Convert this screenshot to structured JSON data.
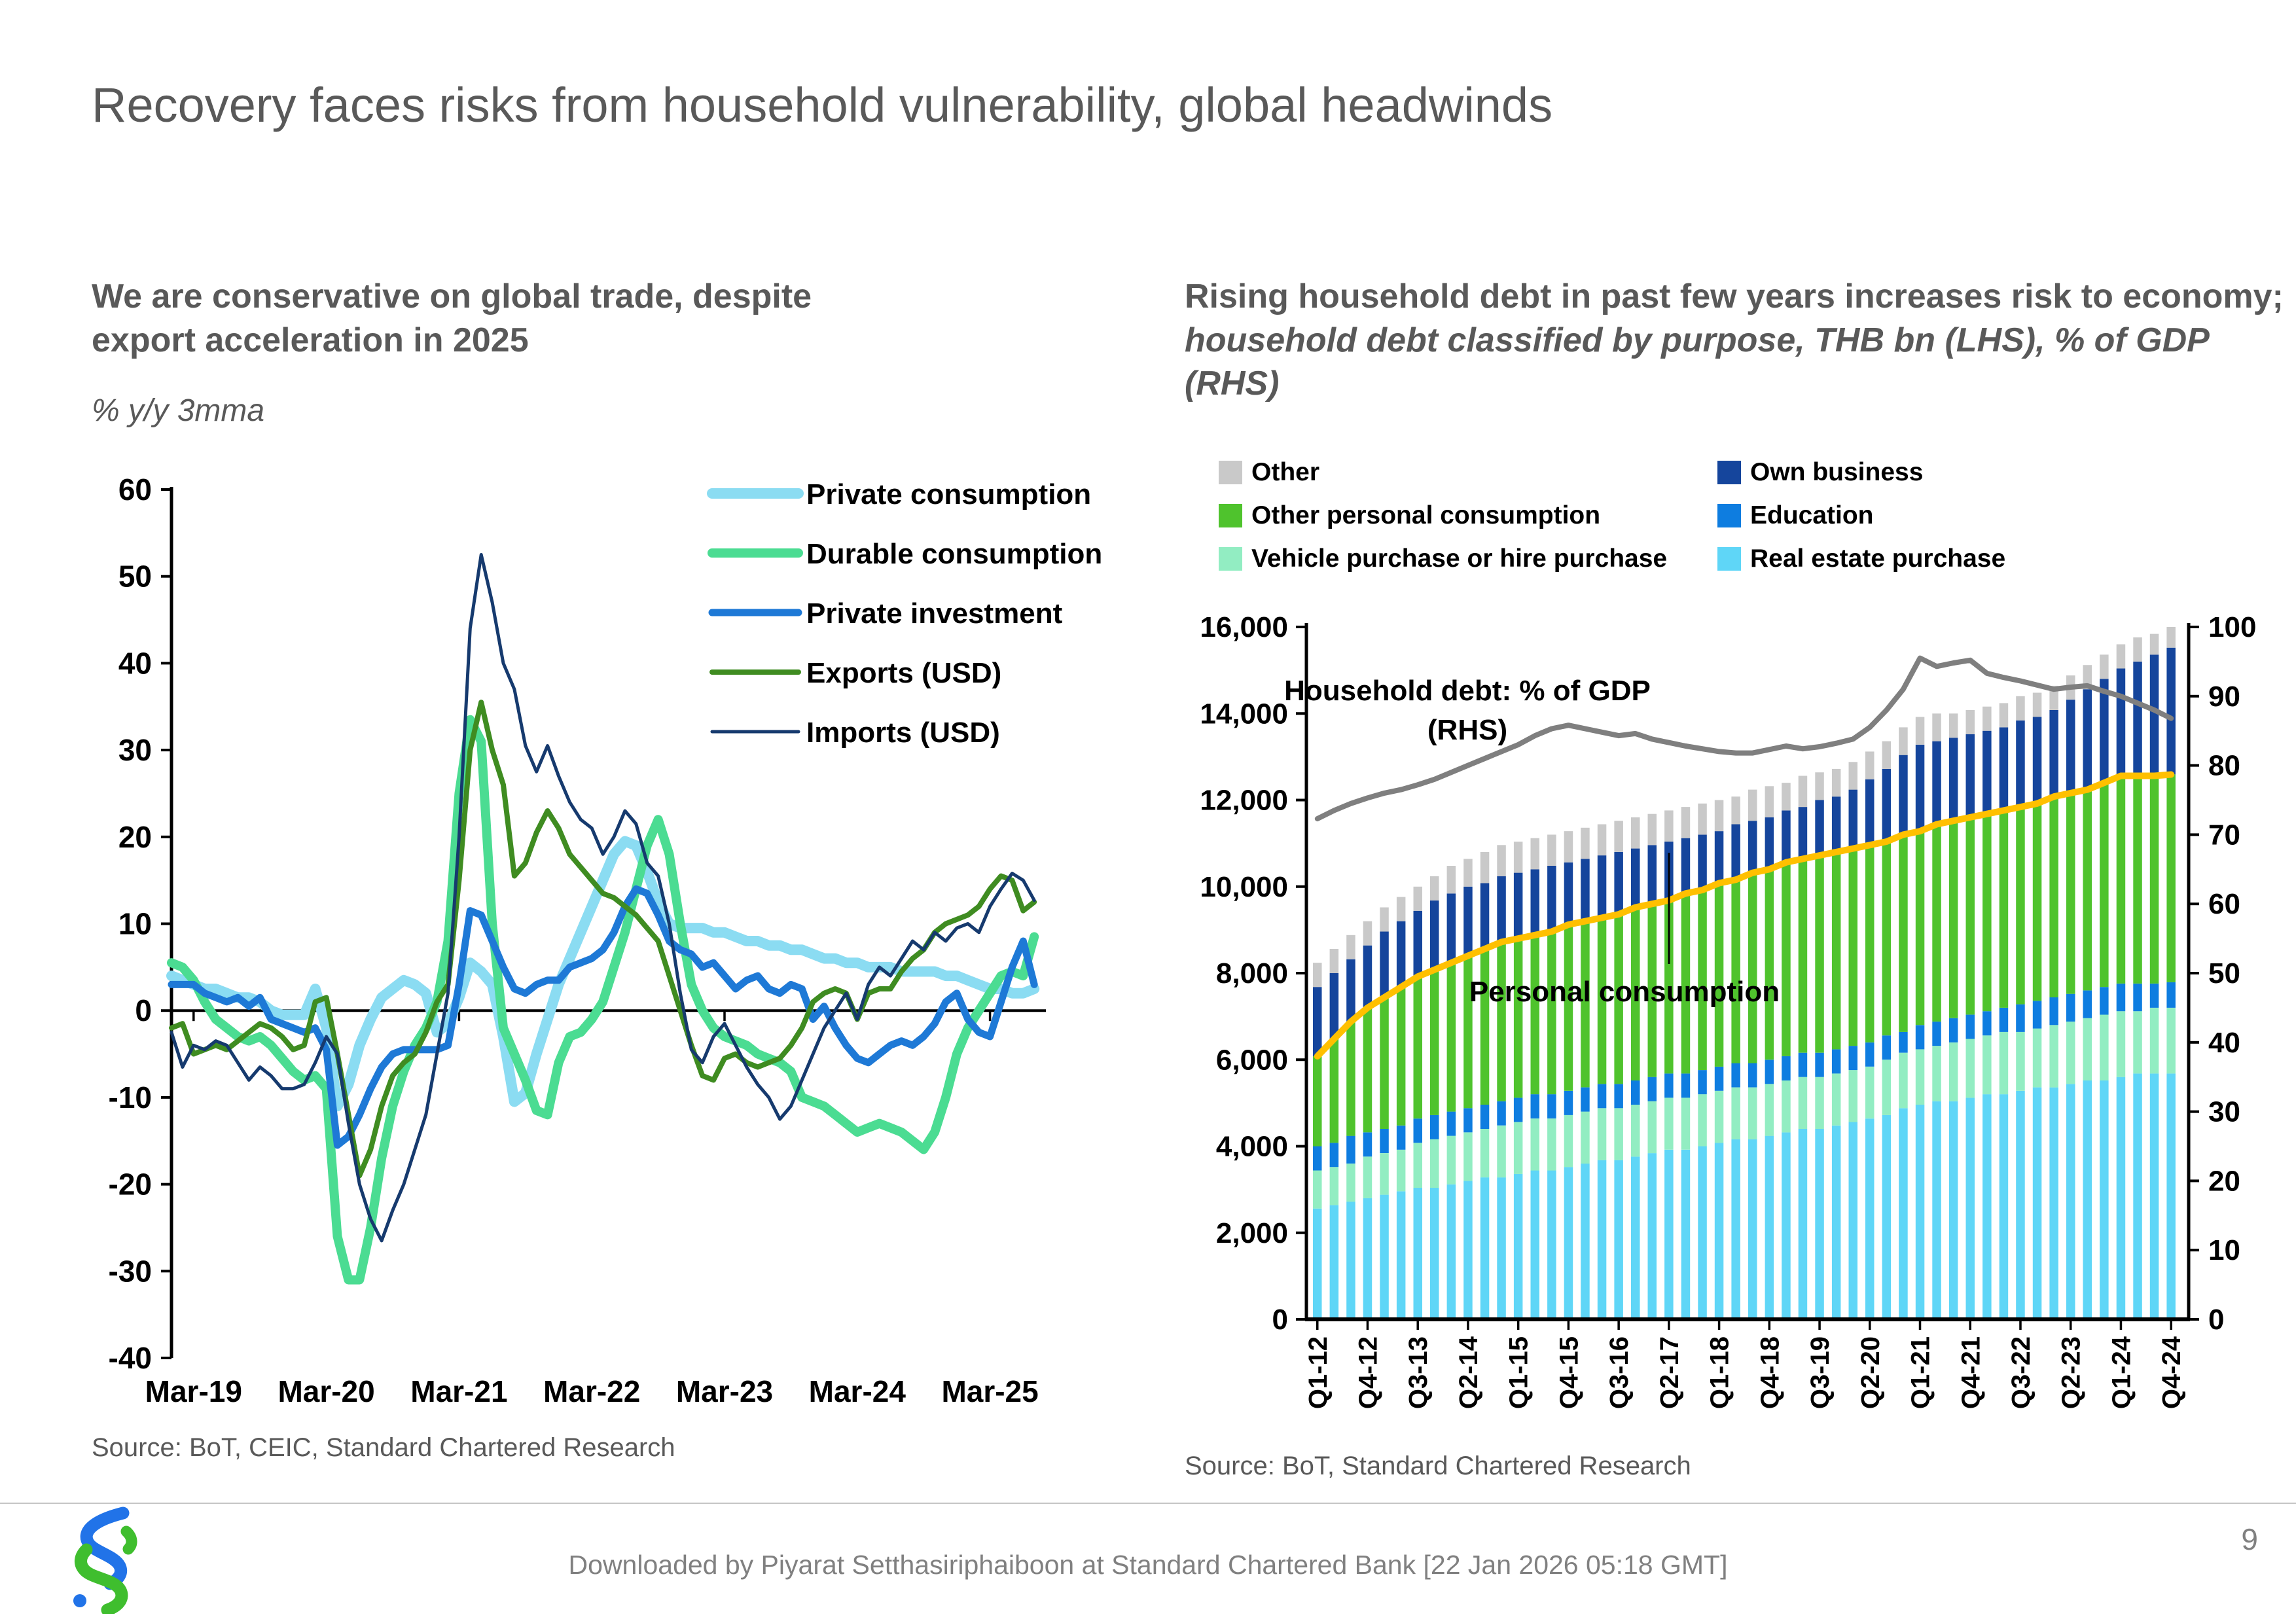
{
  "slide": {
    "title": "Recovery faces risks from household vulnerability, global headwinds",
    "page_number": "9",
    "footer_text": "Downloaded by Piyarat Setthasiriphaiboon at Standard Chartered Bank [22 Jan 2026 05:18 GMT]",
    "logo_colors": {
      "blue": "#2173e8",
      "green": "#3fbe2e"
    }
  },
  "chart_data": [
    {
      "type": "line",
      "title_line1": "We are conservative on global trade, despite",
      "title_line2": "export acceleration in 2025",
      "subtitle": "% y/y 3mma",
      "source": "Source: BoT, CEIC, Standard Chartered Research",
      "x_start": "Jan-19",
      "x_months": 79,
      "x_tick_labels": [
        "Mar-19",
        "Mar-20",
        "Mar-21",
        "Mar-22",
        "Mar-23",
        "Mar-24",
        "Mar-25"
      ],
      "x_tick_month_index": [
        2,
        14,
        26,
        38,
        50,
        62,
        74
      ],
      "ylim": [
        -40,
        60
      ],
      "y_ticks": [
        60,
        50,
        40,
        30,
        20,
        10,
        0,
        -10,
        -20,
        -30,
        -40
      ],
      "grid": false,
      "legend_position": "top-right-inside",
      "series": [
        {
          "name": "Private consumption",
          "color": "#8bdcf2",
          "width": 16,
          "values": [
            4,
            3.5,
            3,
            2.5,
            2.5,
            2,
            1.5,
            1.5,
            1,
            0,
            -0.5,
            -0.5,
            -0.5,
            2.5,
            -2,
            -11,
            -8.5,
            -4,
            -1,
            1.5,
            2.5,
            3.5,
            3,
            2,
            -2.5,
            -1.5,
            1.5,
            5.5,
            4.5,
            3,
            -3,
            -10.5,
            -9.5,
            -5,
            -1,
            3,
            6,
            9,
            12,
            15,
            18,
            19.5,
            19,
            16,
            12.5,
            10,
            9.5,
            9.5,
            9.5,
            9,
            9,
            8.5,
            8,
            8,
            7.5,
            7.5,
            7,
            7,
            6.5,
            6,
            6,
            5.5,
            5.5,
            5,
            5,
            5,
            4.5,
            4.5,
            4.5,
            4.5,
            4,
            4,
            3.5,
            3,
            2.5,
            2.5,
            2,
            2,
            2.5
          ]
        },
        {
          "name": "Durable consumption",
          "color": "#4bdc92",
          "width": 14,
          "values": [
            5.5,
            5,
            3.5,
            1,
            -1,
            -2,
            -3,
            -3.5,
            -3,
            -4,
            -5.5,
            -7,
            -8,
            -7.5,
            -9,
            -26,
            -31,
            -31,
            -25,
            -17,
            -11,
            -7,
            -4,
            -2,
            1,
            8,
            25,
            33.5,
            31,
            10,
            -2,
            -5,
            -8,
            -11.5,
            -12,
            -6,
            -3,
            -2.5,
            -1,
            1,
            5,
            9,
            14,
            19,
            22,
            18,
            10,
            3,
            0,
            -2,
            -3,
            -3.5,
            -4,
            -5,
            -5.5,
            -6,
            -7,
            -10,
            -10.5,
            -11,
            -12,
            -13,
            -14,
            -13.5,
            -13,
            -13.5,
            -14,
            -15,
            -16,
            -14,
            -10,
            -5,
            -2,
            0,
            2,
            4,
            4.5,
            4,
            8.5
          ]
        },
        {
          "name": "Private investment",
          "color": "#1e79d6",
          "width": 11,
          "values": [
            3,
            3,
            3,
            2,
            1.5,
            1,
            1.5,
            0.5,
            1.5,
            -1,
            -1.5,
            -2,
            -2.5,
            -2,
            -4.5,
            -15.5,
            -14.5,
            -12,
            -9,
            -6.5,
            -5,
            -4.5,
            -4.5,
            -4.5,
            -4.5,
            -4,
            3,
            11.5,
            11,
            8,
            5,
            2.5,
            2,
            3,
            3.5,
            3.5,
            5,
            5.5,
            6,
            7,
            9,
            12,
            14,
            13.5,
            11,
            8,
            7,
            6.5,
            5,
            5.5,
            4,
            2.5,
            3.5,
            4,
            2.5,
            2,
            3,
            2.5,
            -1,
            0.5,
            -2,
            -4,
            -5.5,
            -6,
            -5,
            -4,
            -3.5,
            -4,
            -3,
            -1.5,
            1,
            2,
            -1,
            -2.5,
            -3,
            1,
            5,
            8,
            3
          ]
        },
        {
          "name": "Exports (USD)",
          "color": "#3f8c21",
          "width": 8,
          "values": [
            -2,
            -1.5,
            -5,
            -4.5,
            -4,
            -4.5,
            -3.5,
            -2.5,
            -1.5,
            -2,
            -3,
            -4.5,
            -4,
            1,
            1.5,
            -5,
            -12,
            -19,
            -16,
            -11,
            -7.5,
            -6,
            -5,
            -2.5,
            1,
            3,
            15,
            30,
            35.5,
            30,
            26,
            15.5,
            17,
            20.5,
            23,
            21,
            18,
            16.5,
            15,
            13.5,
            13,
            12,
            11,
            9.5,
            8,
            4,
            0,
            -4,
            -7.5,
            -8,
            -5.5,
            -5,
            -6,
            -6.5,
            -6,
            -5.5,
            -4,
            -2,
            1,
            2,
            2.5,
            2,
            -1,
            2,
            2.5,
            2.5,
            4.5,
            6,
            7,
            9,
            10,
            10.5,
            11,
            12,
            14,
            15.5,
            15,
            11.5,
            12.5
          ]
        },
        {
          "name": "Imports (USD)",
          "color": "#163a6e",
          "width": 5,
          "values": [
            -2.5,
            -6.5,
            -4,
            -4.5,
            -3.5,
            -4,
            -6,
            -8,
            -6.5,
            -7.5,
            -9,
            -9,
            -8.5,
            -6,
            -3,
            -5,
            -13,
            -20,
            -24,
            -26.5,
            -23,
            -20,
            -16,
            -12,
            -5,
            2,
            20,
            44,
            52.5,
            47,
            40,
            37,
            30.5,
            27.5,
            30.5,
            27,
            24,
            22,
            21,
            18,
            20,
            23,
            21.5,
            17,
            15.5,
            10,
            2,
            -4.5,
            -6,
            -3,
            -1.5,
            -4,
            -6.5,
            -8.5,
            -10,
            -12.5,
            -11,
            -8,
            -5,
            -2,
            0,
            2,
            -1,
            3,
            5,
            4,
            6,
            8,
            7,
            9,
            8,
            9.5,
            10,
            9,
            12,
            14,
            15.8,
            15,
            12.7
          ]
        }
      ]
    },
    {
      "type": "stacked-bar-line",
      "title_bold": "Rising household debt in past few years increases risk to economy;",
      "title_italic": " household debt classified by purpose, THB bn (LHS), % of GDP (RHS)",
      "source": "Source: BoT, Standard Chartered Research",
      "n_bars": 52,
      "x_tick_labels": [
        "Q1-12",
        "Q4-12",
        "Q3-13",
        "Q2-14",
        "Q1-15",
        "Q4-15",
        "Q3-16",
        "Q2-17",
        "Q1-18",
        "Q4-18",
        "Q3-19",
        "Q2-20",
        "Q1-21",
        "Q4-21",
        "Q3-22",
        "Q2-23",
        "Q1-24",
        "Q4-24"
      ],
      "x_tick_indices": [
        0,
        3,
        6,
        9,
        12,
        15,
        18,
        21,
        24,
        27,
        30,
        33,
        36,
        39,
        42,
        45,
        48,
        51
      ],
      "ylim_left": [
        0,
        16000
      ],
      "y_ticks_left": [
        0,
        2000,
        4000,
        6000,
        8000,
        10000,
        12000,
        14000,
        16000
      ],
      "ylim_right": [
        0,
        100
      ],
      "y_ticks_right": [
        0,
        10,
        20,
        30,
        40,
        50,
        60,
        70,
        80,
        90,
        100
      ],
      "legend_grid": [
        {
          "label": "Other",
          "color": "#c9c9c9"
        },
        {
          "label": "Own business",
          "color": "#15459c"
        },
        {
          "label": "Other personal consumption",
          "color": "#4fc32d"
        },
        {
          "label": "Education",
          "color": "#0e7de0"
        },
        {
          "label": "Vehicle purchase or hire purchase",
          "color": "#92edc2"
        },
        {
          "label": "Real estate purchase",
          "color": "#5fd6f7"
        }
      ],
      "stack_series_bottom_up": [
        {
          "name": "Real estate purchase",
          "color": "#5fd6f7",
          "values": [
            2560,
            2640,
            2720,
            2800,
            2880,
            2960,
            3040,
            3040,
            3120,
            3200,
            3280,
            3280,
            3360,
            3440,
            3440,
            3520,
            3600,
            3680,
            3680,
            3760,
            3840,
            3920,
            3920,
            4000,
            4080,
            4160,
            4160,
            4240,
            4320,
            4400,
            4400,
            4480,
            4560,
            4640,
            4720,
            4880,
            4960,
            5040,
            5040,
            5120,
            5200,
            5200,
            5280,
            5360,
            5360,
            5440,
            5520,
            5520,
            5600,
            5680,
            5680,
            5680
          ]
        },
        {
          "name": "Vehicle purchase or hire purchase",
          "color": "#92edc2",
          "values": [
            880,
            880,
            880,
            960,
            960,
            960,
            1040,
            1120,
            1120,
            1120,
            1120,
            1200,
            1200,
            1200,
            1200,
            1200,
            1200,
            1200,
            1200,
            1200,
            1200,
            1200,
            1200,
            1200,
            1200,
            1200,
            1200,
            1200,
            1200,
            1200,
            1200,
            1200,
            1200,
            1200,
            1280,
            1280,
            1280,
            1280,
            1360,
            1360,
            1360,
            1440,
            1360,
            1360,
            1440,
            1440,
            1440,
            1520,
            1520,
            1440,
            1520,
            1520
          ]
        },
        {
          "name": "Education",
          "color": "#0e7de0",
          "values": [
            560,
            560,
            640,
            560,
            560,
            560,
            560,
            560,
            560,
            560,
            560,
            560,
            560,
            560,
            560,
            560,
            560,
            560,
            560,
            560,
            560,
            560,
            560,
            560,
            560,
            560,
            560,
            560,
            560,
            560,
            560,
            560,
            560,
            560,
            560,
            480,
            560,
            560,
            560,
            560,
            560,
            560,
            640,
            640,
            640,
            640,
            640,
            640,
            640,
            640,
            560,
            590
          ]
        },
        {
          "name": "Other personal consumption",
          "color": "#4fc32d",
          "values": [
            2080,
            2400,
            2640,
            2880,
            3040,
            3200,
            3280,
            3360,
            3440,
            3520,
            3600,
            3680,
            3680,
            3680,
            3760,
            3840,
            3840,
            3840,
            3920,
            4000,
            4000,
            4000,
            4160,
            4160,
            4240,
            4240,
            4400,
            4400,
            4480,
            4480,
            4560,
            4560,
            4560,
            4560,
            4480,
            4560,
            4480,
            4560,
            4560,
            4560,
            4560,
            4560,
            4560,
            4560,
            4640,
            4640,
            4640,
            4720,
            4800,
            4800,
            4800,
            4800
          ]
        },
        {
          "name": "Own business",
          "color": "#15459c",
          "values": [
            1600,
            1520,
            1440,
            1440,
            1520,
            1520,
            1520,
            1600,
            1600,
            1600,
            1520,
            1520,
            1520,
            1520,
            1520,
            1440,
            1440,
            1440,
            1440,
            1360,
            1360,
            1360,
            1280,
            1280,
            1200,
            1280,
            1200,
            1200,
            1200,
            1200,
            1280,
            1280,
            1360,
            1520,
            1680,
            1840,
            2000,
            1920,
            1920,
            1920,
            1920,
            1920,
            2000,
            2000,
            2000,
            2160,
            2320,
            2400,
            2480,
            2640,
            2800,
            2930
          ]
        },
        {
          "name": "Other",
          "color": "#c9c9c9",
          "values": [
            560,
            560,
            560,
            560,
            560,
            560,
            560,
            560,
            640,
            640,
            720,
            720,
            720,
            720,
            720,
            720,
            720,
            720,
            720,
            720,
            720,
            720,
            720,
            720,
            720,
            640,
            720,
            720,
            640,
            720,
            640,
            640,
            640,
            640,
            640,
            640,
            640,
            640,
            560,
            560,
            560,
            560,
            560,
            560,
            560,
            560,
            560,
            560,
            560,
            560,
            480,
            480
          ]
        }
      ],
      "personal_consumption_line": {
        "name": "Personal consumption",
        "color": "#ffc000",
        "width": 10,
        "note": "runs along cumulative top of the four personal-consumption segments"
      },
      "gdp_line": {
        "name": "Household debt: % of GDP (RHS)",
        "color": "#7f7f7f",
        "width": 8,
        "axis": "right",
        "values": [
          72.3,
          73.5,
          74.5,
          75.3,
          76,
          76.5,
          77.2,
          78,
          79,
          80,
          81,
          82,
          83,
          84.3,
          85.3,
          85.8,
          85.3,
          84.8,
          84.3,
          84.6,
          83.8,
          83.3,
          82.8,
          82.4,
          82,
          81.8,
          81.8,
          82.3,
          82.8,
          82.4,
          82.7,
          83.2,
          83.8,
          85.5,
          88,
          91,
          95.5,
          94.3,
          94.8,
          95.2,
          93.3,
          92.7,
          92.2,
          91.6,
          91,
          91.3,
          91.5,
          90.7,
          90,
          89,
          88,
          86.8
        ]
      },
      "annotations": {
        "gdp_label_line1": "Household debt: % of GDP",
        "gdp_label_line2": "(RHS)",
        "personal_consumption_label": "Personal consumption"
      }
    }
  ]
}
